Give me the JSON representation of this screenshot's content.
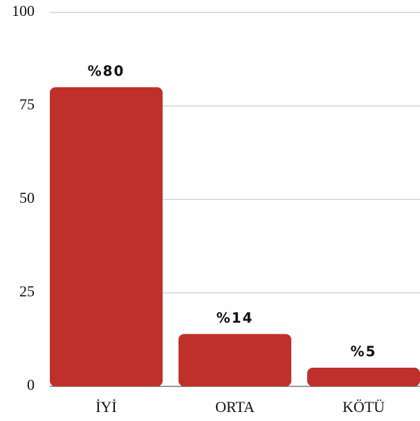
{
  "chart_data": {
    "type": "bar",
    "categories": [
      "İYİ",
      "ORTA",
      "KÖTÜ"
    ],
    "values": [
      80,
      14,
      5
    ],
    "value_labels": [
      "%80",
      "%14",
      "%5"
    ],
    "color": "#c0302a",
    "ylim": [
      0,
      100
    ],
    "yticks": [
      0,
      25,
      50,
      75,
      100
    ],
    "grid": true
  }
}
